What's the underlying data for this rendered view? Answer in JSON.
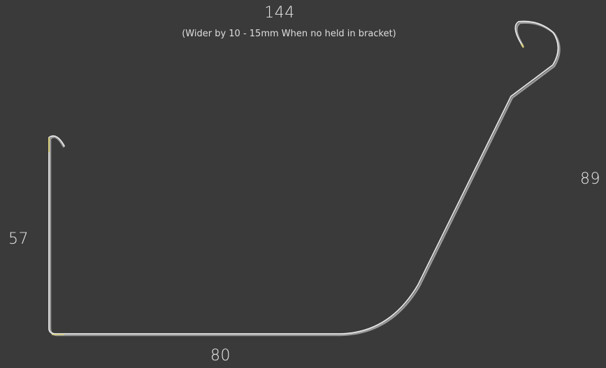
{
  "dimensions": {
    "top": "144",
    "note": "(Wider by 10 - 15mm When no held in bracket)",
    "left": "57",
    "right": "89",
    "bottom": "80"
  },
  "colors": {
    "background": "#3a3a3a",
    "profile_stroke": "#e6e6e6",
    "profile_shadow": "#9a9a9a",
    "end_accent": "#d8cf7a",
    "text": "#eaeaea"
  }
}
